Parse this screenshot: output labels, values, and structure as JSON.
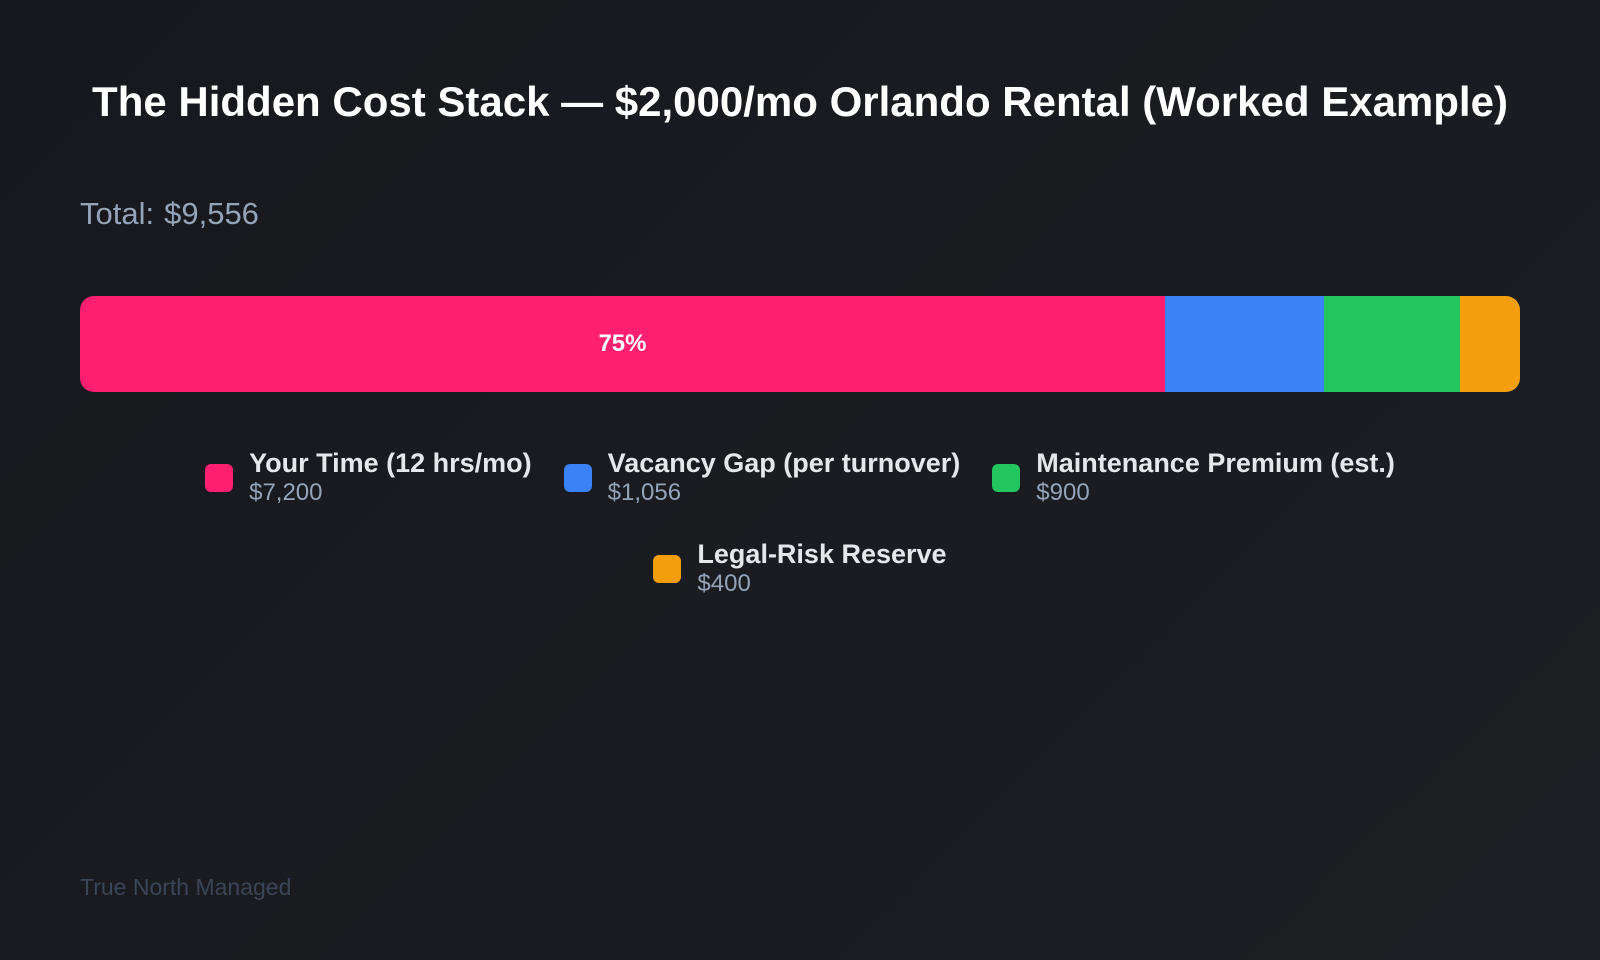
{
  "chart_data": {
    "type": "bar",
    "orientation": "horizontal-stacked",
    "title": "The Hidden Cost Stack — $2,000/mo Orlando Rental (Worked Example)",
    "total_label": "Total:",
    "total_value": "$9,556",
    "segments": [
      {
        "label": "Your Time (12 hrs/mo)",
        "value": 7200,
        "display": "$7,200",
        "color": "#ff1f6f",
        "pct_label": "75%"
      },
      {
        "label": "Vacancy Gap (per turnover)",
        "value": 1056,
        "display": "$1,056",
        "color": "#3b82f6",
        "pct_label": ""
      },
      {
        "label": "Maintenance Premium (est.)",
        "value": 900,
        "display": "$900",
        "color": "#22c55e",
        "pct_label": ""
      },
      {
        "label": "Legal-Risk Reserve",
        "value": 400,
        "display": "$400",
        "color": "#f59e0b",
        "pct_label": ""
      }
    ]
  },
  "footer": {
    "brand": "True North Managed"
  }
}
